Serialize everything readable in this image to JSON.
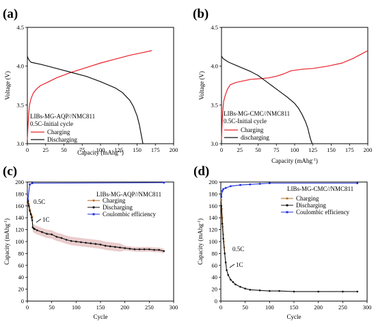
{
  "panels": [
    {
      "letter": "(a)",
      "xlabel": "Capacity (mAhg",
      "xlabel_sup": "-1",
      "xlabel_tail": ")",
      "ylabel": "Voltage (V)",
      "legend_title": "LIBs-MG-AQP//NMC811",
      "legend_subtitle": "0.5C-Initial cycle"
    },
    {
      "letter": "(b)",
      "xlabel": "Capacity (mAhg",
      "xlabel_sup": "-1",
      "xlabel_tail": ")",
      "ylabel": "Voltage (V)",
      "legend_title": "LIBs-MG-CMC//NMC811",
      "legend_subtitle": "0.5C-Initial cycle"
    },
    {
      "letter": "(c)",
      "xlabel": "Cycle",
      "ylabel": "Capacity (mAhg",
      "ylabel_sup": "-1",
      "ylabel_tail": ")",
      "legend_title": "LIBs-MG-AQP//NMC811",
      "annotations": [
        "0.5C",
        "1C"
      ]
    },
    {
      "letter": "(d)",
      "xlabel": "Cycle",
      "ylabel": "Capacity (mAhg",
      "ylabel_sup": "-1",
      "ylabel_tail": ")",
      "legend_title": "LIBs-MG-CMC//NMC811",
      "annotations": [
        "0.5C",
        "1C"
      ]
    }
  ],
  "colors": {
    "charging_line": "#e8202a",
    "discharging_line": "#111111",
    "charging_marker": "#b5651d",
    "error_band": "#d9a3a3",
    "coulombic": "#1f2fd8"
  },
  "chart_data": [
    {
      "type": "line",
      "xlim": [
        0,
        200
      ],
      "ylim": [
        3.0,
        4.5
      ],
      "x_ticks": [
        "0",
        "25",
        "50",
        "75",
        "100",
        "125",
        "150",
        "175",
        "200"
      ],
      "y_ticks": [
        "3.0",
        "3.5",
        "4.0",
        "4.5"
      ],
      "series": [
        {
          "name": "Charging",
          "color": "#e8202a",
          "x": [
            0,
            1,
            2,
            3,
            5,
            8,
            12,
            18,
            25,
            40,
            60,
            80,
            100,
            120,
            140,
            155,
            170
          ],
          "y": [
            3.05,
            3.25,
            3.4,
            3.5,
            3.58,
            3.65,
            3.7,
            3.75,
            3.78,
            3.85,
            3.92,
            3.98,
            4.04,
            4.09,
            4.14,
            4.17,
            4.2
          ]
        },
        {
          "name": "Discharging",
          "color": "#111111",
          "x": [
            0,
            1,
            3,
            5,
            10,
            20,
            40,
            60,
            80,
            100,
            120,
            130,
            140,
            145,
            150,
            153,
            156,
            158
          ],
          "y": [
            4.13,
            4.1,
            4.07,
            4.05,
            4.04,
            4.02,
            3.97,
            3.92,
            3.87,
            3.8,
            3.72,
            3.66,
            3.56,
            3.48,
            3.36,
            3.25,
            3.1,
            3.0
          ]
        }
      ]
    },
    {
      "type": "line",
      "xlim": [
        0,
        200
      ],
      "ylim": [
        3.0,
        4.5
      ],
      "x_ticks": [
        "0",
        "25",
        "50",
        "75",
        "100",
        "125",
        "150",
        "175",
        "200"
      ],
      "y_ticks": [
        "3.0",
        "3.5",
        "4.0",
        "4.5"
      ],
      "series": [
        {
          "name": "Charging",
          "color": "#e8202a",
          "x": [
            0,
            1,
            2,
            3,
            5,
            8,
            12,
            20,
            30,
            40,
            55,
            65,
            75,
            85,
            95,
            110,
            125,
            145,
            165,
            180,
            192,
            200
          ],
          "y": [
            3.05,
            3.3,
            3.45,
            3.55,
            3.62,
            3.7,
            3.76,
            3.79,
            3.81,
            3.83,
            3.84,
            3.85,
            3.87,
            3.9,
            3.94,
            3.96,
            3.97,
            4.0,
            4.04,
            4.1,
            4.16,
            4.2
          ]
        },
        {
          "name": "discharging",
          "color": "#111111",
          "x": [
            0,
            2,
            5,
            10,
            20,
            30,
            40,
            50,
            60,
            70,
            80,
            90,
            100,
            105,
            110,
            115,
            118,
            120,
            122,
            124
          ],
          "y": [
            4.13,
            4.1,
            4.08,
            4.05,
            4.01,
            3.97,
            3.93,
            3.88,
            3.81,
            3.74,
            3.67,
            3.6,
            3.52,
            3.46,
            3.38,
            3.28,
            3.2,
            3.12,
            3.05,
            3.0
          ]
        }
      ]
    },
    {
      "type": "line",
      "xlim": [
        0,
        300
      ],
      "ylim": [
        0,
        200
      ],
      "x_ticks": [
        "0",
        "50",
        "100",
        "150",
        "200",
        "250",
        "300"
      ],
      "y_ticks": [
        "0",
        "20",
        "40",
        "60",
        "80",
        "100",
        "120",
        "140",
        "160",
        "180",
        "200"
      ],
      "series": [
        {
          "name": "Charging",
          "color": "#b5651d",
          "x": [
            1,
            2,
            3,
            4,
            5,
            6,
            7,
            8,
            9,
            10
          ],
          "y": [
            175,
            168,
            163,
            158,
            154,
            150,
            147,
            145,
            143,
            141
          ]
        },
        {
          "name": "Discharging",
          "color": "#111111",
          "x": [
            1,
            3,
            5,
            7,
            9,
            10,
            11,
            13,
            15,
            20,
            30,
            40,
            50,
            60,
            70,
            80,
            90,
            100,
            110,
            120,
            130,
            140,
            150,
            160,
            170,
            180,
            190,
            200,
            210,
            220,
            230,
            240,
            250,
            260,
            270,
            280
          ],
          "y": [
            168,
            160,
            152,
            146,
            140,
            136,
            124,
            122,
            121,
            119,
            116,
            113,
            112,
            108,
            106,
            103,
            101,
            100,
            99,
            98,
            97,
            96,
            95,
            93,
            92,
            91,
            90,
            89,
            88,
            87,
            87,
            87,
            87,
            86,
            86,
            84
          ]
        },
        {
          "name": "Coulombic efficiency",
          "color": "#1f2fd8",
          "x": [
            1,
            5,
            10,
            280
          ],
          "y": [
            170,
            196,
            198,
            199
          ]
        }
      ]
    },
    {
      "type": "line",
      "xlim": [
        0,
        300
      ],
      "ylim": [
        0,
        200
      ],
      "x_ticks": [
        "0",
        "50",
        "100",
        "150",
        "200",
        "250",
        "300"
      ],
      "y_ticks": [
        "0",
        "20",
        "40",
        "60",
        "80",
        "100",
        "120",
        "140",
        "160",
        "180",
        "200"
      ],
      "series": [
        {
          "name": "Charging",
          "color": "#b5651d",
          "x": [
            1,
            2,
            3,
            4,
            5,
            6,
            7,
            8
          ],
          "y": [
            170,
            155,
            140,
            125,
            112,
            100,
            90,
            80
          ]
        },
        {
          "name": "Discharging",
          "color": "#111111",
          "x": [
            1,
            3,
            5,
            8,
            10,
            12,
            15,
            20,
            25,
            30,
            40,
            50,
            60,
            80,
            100,
            120,
            150,
            200,
            250,
            280
          ],
          "y": [
            160,
            130,
            105,
            80,
            65,
            52,
            44,
            36,
            32,
            28,
            24,
            21,
            19,
            18,
            17,
            17,
            16,
            16,
            16,
            16
          ]
        },
        {
          "name": "Coulombic efficiency",
          "color": "#1f2fd8",
          "x": [
            1,
            3,
            5,
            10,
            20,
            40,
            60,
            80,
            100,
            280
          ],
          "y": [
            175,
            185,
            188,
            190,
            193,
            195,
            196,
            197,
            198,
            198
          ]
        }
      ]
    }
  ]
}
